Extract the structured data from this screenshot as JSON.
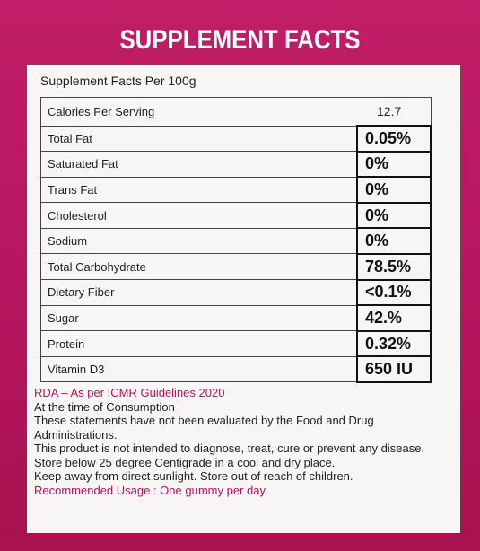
{
  "title": "SUPPLEMENT FACTS",
  "per100": "Supplement Facts Per 100g",
  "calories": {
    "label": "Calories Per Serving",
    "value": "12.7"
  },
  "rows": [
    {
      "label": "Total Fat",
      "value": "0.05%"
    },
    {
      "label": "Saturated Fat",
      "value": "0%"
    },
    {
      "label": "Trans Fat",
      "value": "0%"
    },
    {
      "label": "Cholesterol",
      "value": "0%"
    },
    {
      "label": "Sodium",
      "value": "0%"
    },
    {
      "label": "Total Carbohydrate",
      "value": "78.5%"
    },
    {
      "label": "Dietary Fiber",
      "value": "<0.1%"
    },
    {
      "label": "Sugar",
      "value": "42.%"
    },
    {
      "label": "Protein",
      "value": "0.32%"
    },
    {
      "label": "Vitamin D3",
      "value": "650 IU"
    }
  ],
  "notes": {
    "rda": "RDA – As per ICMR Guidelines 2020",
    "consumption": "At the time of Consumption",
    "fda": "These statements have not been evaluated by the Food and Drug Administrations.",
    "disclaimer": "This product is not intended to diagnose, treat, cure or prevent any disease.",
    "storage": "Store below 25 degree Centigrade in a cool and dry place.",
    "keep_away": "Keep away from direct sunlight. Store out of reach of children.",
    "usage": "Recommended Usage : One gummy per day."
  },
  "colors": {
    "background": "#b8175f",
    "panel": "#f7f6f4",
    "accent_text": "#b01459"
  }
}
